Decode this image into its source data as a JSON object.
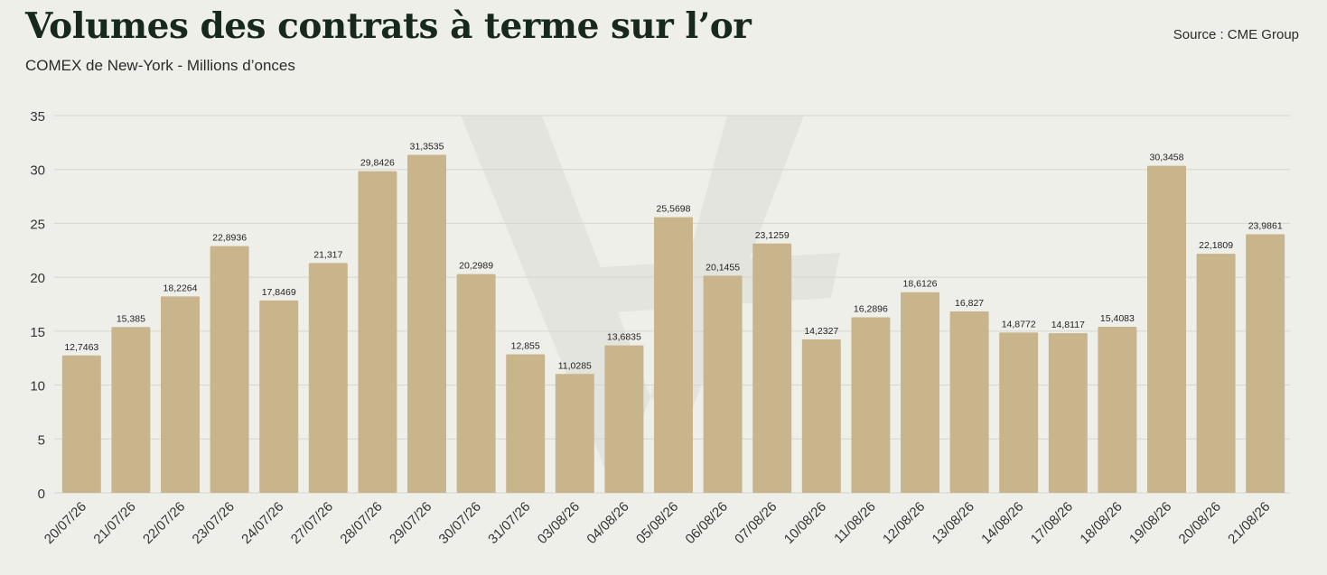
{
  "header": {
    "title": "Volumes des contrats à terme sur l’or",
    "subtitle": "COMEX de New-York - Millions d’onces",
    "source": "Source : CME Group"
  },
  "colors": {
    "bar": "#c8b58c",
    "grid": "#d6d6d0",
    "axis_text": "#333333",
    "background": "#efefea",
    "title": "#16291c"
  },
  "chart_data": {
    "type": "bar",
    "title": "Volumes des contrats à terme sur l’or",
    "subtitle": "COMEX de New-York - Millions d’onces",
    "xlabel": "",
    "ylabel": "",
    "ylim": [
      0,
      35
    ],
    "yticks": [
      "0",
      "5",
      "10",
      "15",
      "20",
      "25",
      "30",
      "35"
    ],
    "grid": true,
    "legend": "none",
    "categories": [
      "20/07/26",
      "21/07/26",
      "22/07/26",
      "23/07/26",
      "24/07/26",
      "27/07/26",
      "28/07/26",
      "29/07/26",
      "30/07/26",
      "31/07/26",
      "03/08/26",
      "04/08/26",
      "05/08/26",
      "06/08/26",
      "07/08/26",
      "10/08/26",
      "11/08/26",
      "12/08/26",
      "13/08/26",
      "14/08/26",
      "17/08/26",
      "18/08/26",
      "19/08/26",
      "20/08/26",
      "21/08/26"
    ],
    "values": [
      12.7463,
      15.385,
      18.2264,
      22.8936,
      17.8469,
      21.317,
      29.8426,
      31.3535,
      20.2989,
      12.855,
      11.0285,
      13.6835,
      25.5698,
      20.1455,
      23.1259,
      14.2327,
      16.2896,
      18.6126,
      16.827,
      14.8772,
      14.8117,
      15.4083,
      30.3458,
      22.1809,
      23.9861
    ],
    "value_labels": [
      "12,7463",
      "15,385",
      "18,2264",
      "22,8936",
      "17,8469",
      "21,317",
      "29,8426",
      "31,3535",
      "20,2989",
      "12,855",
      "11,0285",
      "13,6835",
      "25,5698",
      "20,1455",
      "23,1259",
      "14,2327",
      "16,2896",
      "18,6126",
      "16,827",
      "14,8772",
      "14,8117",
      "15,4083",
      "30,3458",
      "22,1809",
      "23,9861"
    ]
  }
}
